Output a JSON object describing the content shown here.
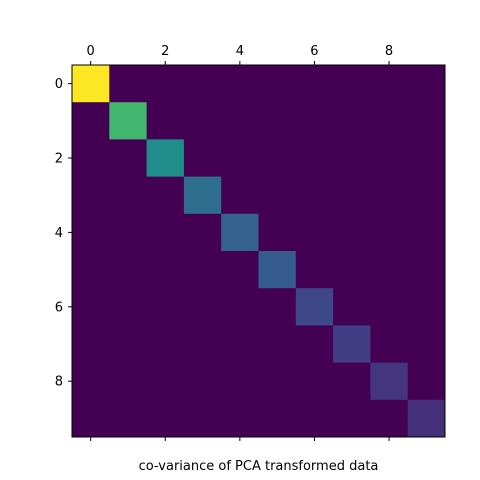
{
  "chart_data": {
    "type": "heatmap",
    "title": "",
    "xlabel": "co-variance of PCA transformed data",
    "ylabel": "",
    "rows": 10,
    "cols": 10,
    "x_ticks": [
      0,
      2,
      4,
      6,
      8
    ],
    "y_ticks": [
      0,
      2,
      4,
      6,
      8
    ],
    "x_tick_labels": [
      "0",
      "2",
      "4",
      "6",
      "8"
    ],
    "y_tick_labels": [
      "0",
      "2",
      "4",
      "6",
      "8"
    ],
    "x_tick_position": "top",
    "grid": false,
    "colormap": "viridis",
    "color_range": [
      0,
      1
    ],
    "values": [
      [
        1.0,
        0,
        0,
        0,
        0,
        0,
        0,
        0,
        0,
        0
      ],
      [
        0,
        0.8,
        0,
        0,
        0,
        0,
        0,
        0,
        0,
        0
      ],
      [
        0,
        0,
        0.62,
        0,
        0,
        0,
        0,
        0,
        0,
        0
      ],
      [
        0,
        0,
        0,
        0.45,
        0,
        0,
        0,
        0,
        0,
        0
      ],
      [
        0,
        0,
        0,
        0,
        0.4,
        0,
        0,
        0,
        0,
        0
      ],
      [
        0,
        0,
        0,
        0,
        0,
        0.37,
        0,
        0,
        0,
        0
      ],
      [
        0,
        0,
        0,
        0,
        0,
        0,
        0.27,
        0,
        0,
        0
      ],
      [
        0,
        0,
        0,
        0,
        0,
        0,
        0,
        0.23,
        0,
        0
      ],
      [
        0,
        0,
        0,
        0,
        0,
        0,
        0,
        0,
        0.2,
        0
      ],
      [
        0,
        0,
        0,
        0,
        0,
        0,
        0,
        0,
        0,
        0.18
      ]
    ]
  }
}
